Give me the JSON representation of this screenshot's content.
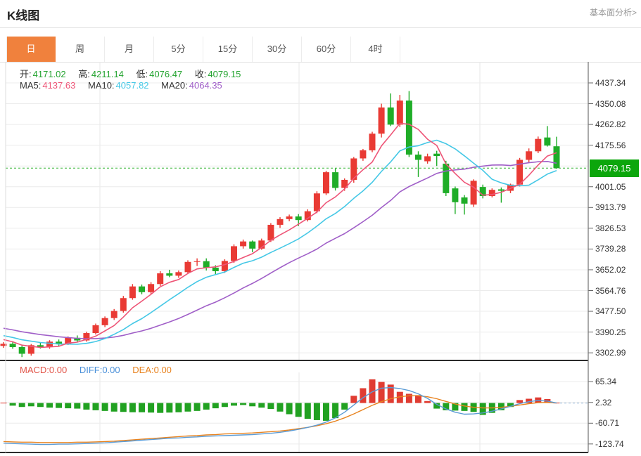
{
  "header": {
    "title": "K线图",
    "analysis_link": "基本面分析>"
  },
  "tabs": [
    {
      "id": "day",
      "label": "日",
      "active": true
    },
    {
      "id": "week",
      "label": "周",
      "active": false
    },
    {
      "id": "month",
      "label": "月",
      "active": false
    },
    {
      "id": "5min",
      "label": "5分",
      "active": false
    },
    {
      "id": "15min",
      "label": "15分",
      "active": false
    },
    {
      "id": "30min",
      "label": "30分",
      "active": false
    },
    {
      "id": "60min",
      "label": "60分",
      "active": false
    },
    {
      "id": "4hour",
      "label": "4时",
      "active": false
    }
  ],
  "legend": {
    "ohlc": [
      {
        "label": "开:",
        "value": "4171.02"
      },
      {
        "label": "高:",
        "value": "4211.14"
      },
      {
        "label": "低:",
        "value": "4076.47"
      },
      {
        "label": "收:",
        "value": "4079.15"
      }
    ],
    "ma": [
      {
        "label": "MA5:",
        "value": "4137.63"
      },
      {
        "label": "MA10:",
        "value": "4057.82"
      },
      {
        "label": "MA20:",
        "value": "4064.35"
      }
    ],
    "macd": [
      {
        "label": "MACD:",
        "value": "0.00"
      },
      {
        "label": "DIFF:",
        "value": "0.00"
      },
      {
        "label": "DEA:",
        "value": "0.00"
      }
    ]
  },
  "colors": {
    "up_candle": "#e93a34",
    "down_candle": "#1fad28",
    "ma5": "#ee5577",
    "ma10": "#45c8e6",
    "ma20": "#a05fc8",
    "diff_line": "#5b9bd5",
    "dea_line": "#e8831f",
    "hist_up": "#e03c32",
    "hist_down": "#21a121",
    "price_line": "#2db22d",
    "price_tag_bg": "#0ca60c",
    "active_tab": "#f0813d",
    "grid": "#ececec",
    "axis": "#7c7c7c",
    "divider": "#2b2b2b"
  },
  "chart_data": [
    {
      "type": "candlestick",
      "title": "K线图 (daily)",
      "legend_position": "top-left",
      "grid": true,
      "current_price": "4079.15",
      "price_axis_labels": [
        "4437.34",
        "4350.08",
        "4262.82",
        "4175.56",
        "4001.05",
        "3913.79",
        "3826.53",
        "3739.28",
        "3652.02",
        "3564.76",
        "3477.50",
        "3390.25",
        "3302.99"
      ],
      "ylim": [
        3270,
        4445
      ],
      "ma_seed_closes": [
        3470,
        3464,
        3458,
        3452,
        3446,
        3440,
        3434,
        3428,
        3422,
        3416,
        3410,
        3404,
        3398,
        3392,
        3386,
        3380,
        3374,
        3368,
        3360,
        3350
      ],
      "candles_ohlc": [
        [
          3332,
          3348,
          3324,
          3341
        ],
        [
          3341,
          3352,
          3320,
          3327
        ],
        [
          3327,
          3333,
          3285,
          3299
        ],
        [
          3299,
          3340,
          3291,
          3335
        ],
        [
          3335,
          3347,
          3321,
          3328
        ],
        [
          3328,
          3356,
          3320,
          3350
        ],
        [
          3350,
          3359,
          3333,
          3340
        ],
        [
          3340,
          3372,
          3336,
          3366
        ],
        [
          3366,
          3376,
          3347,
          3355
        ],
        [
          3355,
          3392,
          3350,
          3386
        ],
        [
          3386,
          3426,
          3380,
          3419
        ],
        [
          3419,
          3456,
          3411,
          3449
        ],
        [
          3449,
          3487,
          3441,
          3479
        ],
        [
          3479,
          3542,
          3472,
          3533
        ],
        [
          3533,
          3592,
          3526,
          3582
        ],
        [
          3582,
          3590,
          3549,
          3558
        ],
        [
          3558,
          3600,
          3551,
          3592
        ],
        [
          3592,
          3646,
          3584,
          3637
        ],
        [
          3637,
          3652,
          3621,
          3627
        ],
        [
          3627,
          3649,
          3618,
          3642
        ],
        [
          3642,
          3692,
          3636,
          3685
        ],
        [
          3685,
          3700,
          3668,
          3688
        ],
        [
          3688,
          3700,
          3649,
          3661
        ],
        [
          3661,
          3671,
          3633,
          3646
        ],
        [
          3646,
          3696,
          3639,
          3689
        ],
        [
          3689,
          3759,
          3681,
          3751
        ],
        [
          3751,
          3779,
          3741,
          3771
        ],
        [
          3771,
          3775,
          3726,
          3741
        ],
        [
          3741,
          3783,
          3736,
          3775
        ],
        [
          3775,
          3848,
          3769,
          3841
        ],
        [
          3841,
          3873,
          3828,
          3865
        ],
        [
          3865,
          3884,
          3856,
          3876
        ],
        [
          3876,
          3886,
          3836,
          3861
        ],
        [
          3861,
          3906,
          3855,
          3898
        ],
        [
          3898,
          3982,
          3890,
          3973
        ],
        [
          3973,
          4068,
          3966,
          4062
        ],
        [
          4062,
          4078,
          3985,
          3996
        ],
        [
          3996,
          4036,
          3984,
          4030
        ],
        [
          4030,
          4126,
          4018,
          4120
        ],
        [
          4120,
          4160,
          4110,
          4154
        ],
        [
          4154,
          4232,
          4146,
          4224
        ],
        [
          4224,
          4350,
          4208,
          4334
        ],
        [
          4334,
          4393,
          4256,
          4262
        ],
        [
          4262,
          4387,
          4252,
          4363
        ],
        [
          4363,
          4403,
          4126,
          4136
        ],
        [
          4136,
          4150,
          4042,
          4114
        ],
        [
          4108,
          4140,
          4098,
          4129
        ],
        [
          4140,
          4152,
          4088,
          4130
        ],
        [
          4098,
          4110,
          3962,
          3974
        ],
        [
          3994,
          4002,
          3886,
          3936
        ],
        [
          3956,
          3966,
          3884,
          3930
        ],
        [
          3926,
          4032,
          3916,
          4026
        ],
        [
          4000,
          4010,
          3952,
          3962
        ],
        [
          3962,
          3994,
          3956,
          3988
        ],
        [
          3990,
          3998,
          3934,
          3984
        ],
        [
          3984,
          4014,
          3974,
          4010
        ],
        [
          4010,
          4122,
          4002,
          4114
        ],
        [
          4114,
          4162,
          4102,
          4150
        ],
        [
          4150,
          4212,
          4142,
          4202
        ],
        [
          4208,
          4256,
          4170,
          4174
        ],
        [
          4171.02,
          4211.14,
          4076.47,
          4079.15
        ]
      ]
    },
    {
      "type": "macd",
      "axis_labels": [
        "65.34",
        "2.32",
        "-60.71",
        "-123.74"
      ],
      "ylim": [
        -150,
        80
      ],
      "hist": [
        1,
        -8,
        -12,
        -10,
        -12,
        -14,
        -15,
        -16,
        -17,
        -20,
        -22,
        -24,
        -26,
        -27,
        -28,
        -28,
        -29,
        -30,
        -29,
        -28,
        -26,
        -24,
        -20,
        -16,
        -12,
        -8,
        -6,
        -10,
        -14,
        -18,
        -26,
        -34,
        -42,
        -48,
        -52,
        -54,
        -46,
        -20,
        22,
        45,
        72,
        64,
        56,
        34,
        28,
        24,
        6,
        -17,
        -22,
        -23,
        -24,
        -27,
        -36,
        -30,
        -22,
        -12,
        9,
        13,
        17,
        12,
        1
      ],
      "diff": [
        -122,
        -123,
        -124,
        -125,
        -126,
        -126,
        -125,
        -125,
        -124,
        -123,
        -122,
        -121,
        -119,
        -117,
        -115,
        -113,
        -111,
        -109,
        -107,
        -106,
        -104,
        -103,
        -101,
        -100,
        -99,
        -98,
        -97,
        -96,
        -94,
        -92,
        -89,
        -85,
        -80,
        -74,
        -67,
        -58,
        -45,
        -28,
        -6,
        16,
        34,
        45,
        47,
        44,
        38,
        28,
        14,
        -4,
        -18,
        -28,
        -34,
        -33,
        -30,
        -25,
        -18,
        -10,
        -2,
        4,
        8,
        6,
        0
      ],
      "dea": [
        -117,
        -118,
        -119,
        -119,
        -120,
        -120,
        -120,
        -120,
        -119,
        -119,
        -118,
        -117,
        -116,
        -114,
        -112,
        -110,
        -108,
        -106,
        -104,
        -102,
        -100,
        -99,
        -97,
        -96,
        -94,
        -93,
        -92,
        -91,
        -89,
        -87,
        -85,
        -82,
        -78,
        -74,
        -69,
        -63,
        -55,
        -45,
        -33,
        -20,
        -7,
        4,
        13,
        19,
        22,
        22,
        19,
        13,
        5,
        -3,
        -9,
        -13,
        -15,
        -15,
        -13,
        -10,
        -6,
        -2,
        1,
        2,
        0
      ]
    }
  ]
}
